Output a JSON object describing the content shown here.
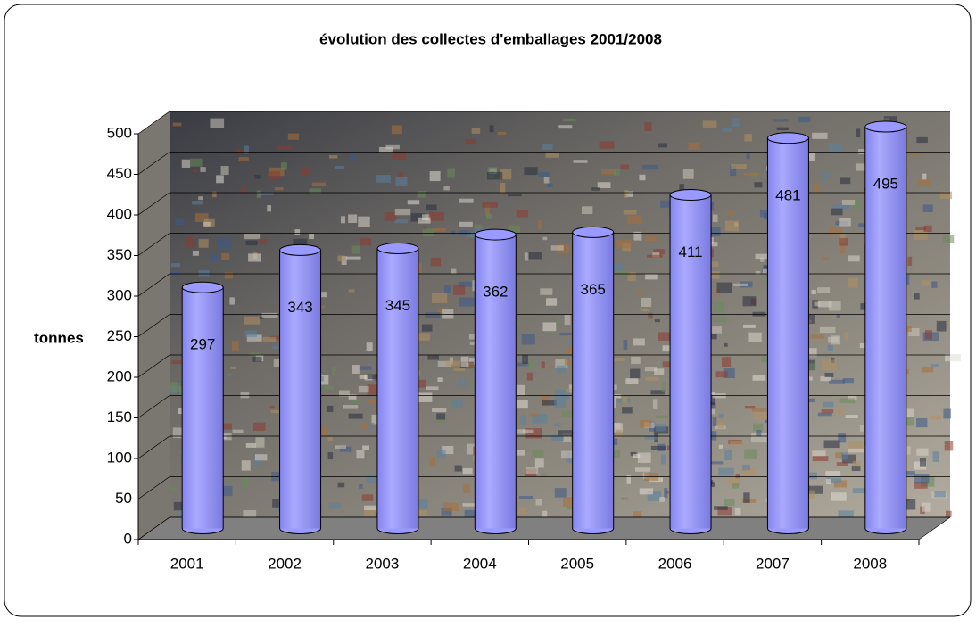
{
  "chart_data": {
    "type": "bar",
    "title": "évolution des collectes d'emballages 2001/2008",
    "y_label": "tonnes",
    "categories": [
      "2001",
      "2002",
      "2003",
      "2004",
      "2005",
      "2006",
      "2007",
      "2008"
    ],
    "values": [
      297,
      343,
      345,
      362,
      365,
      411,
      481,
      495
    ],
    "color": "#9999ff",
    "ylim": [
      0,
      500
    ],
    "yticks": [
      0,
      50,
      100,
      150,
      200,
      250,
      300,
      350,
      400,
      450,
      500
    ],
    "grid": true
  }
}
